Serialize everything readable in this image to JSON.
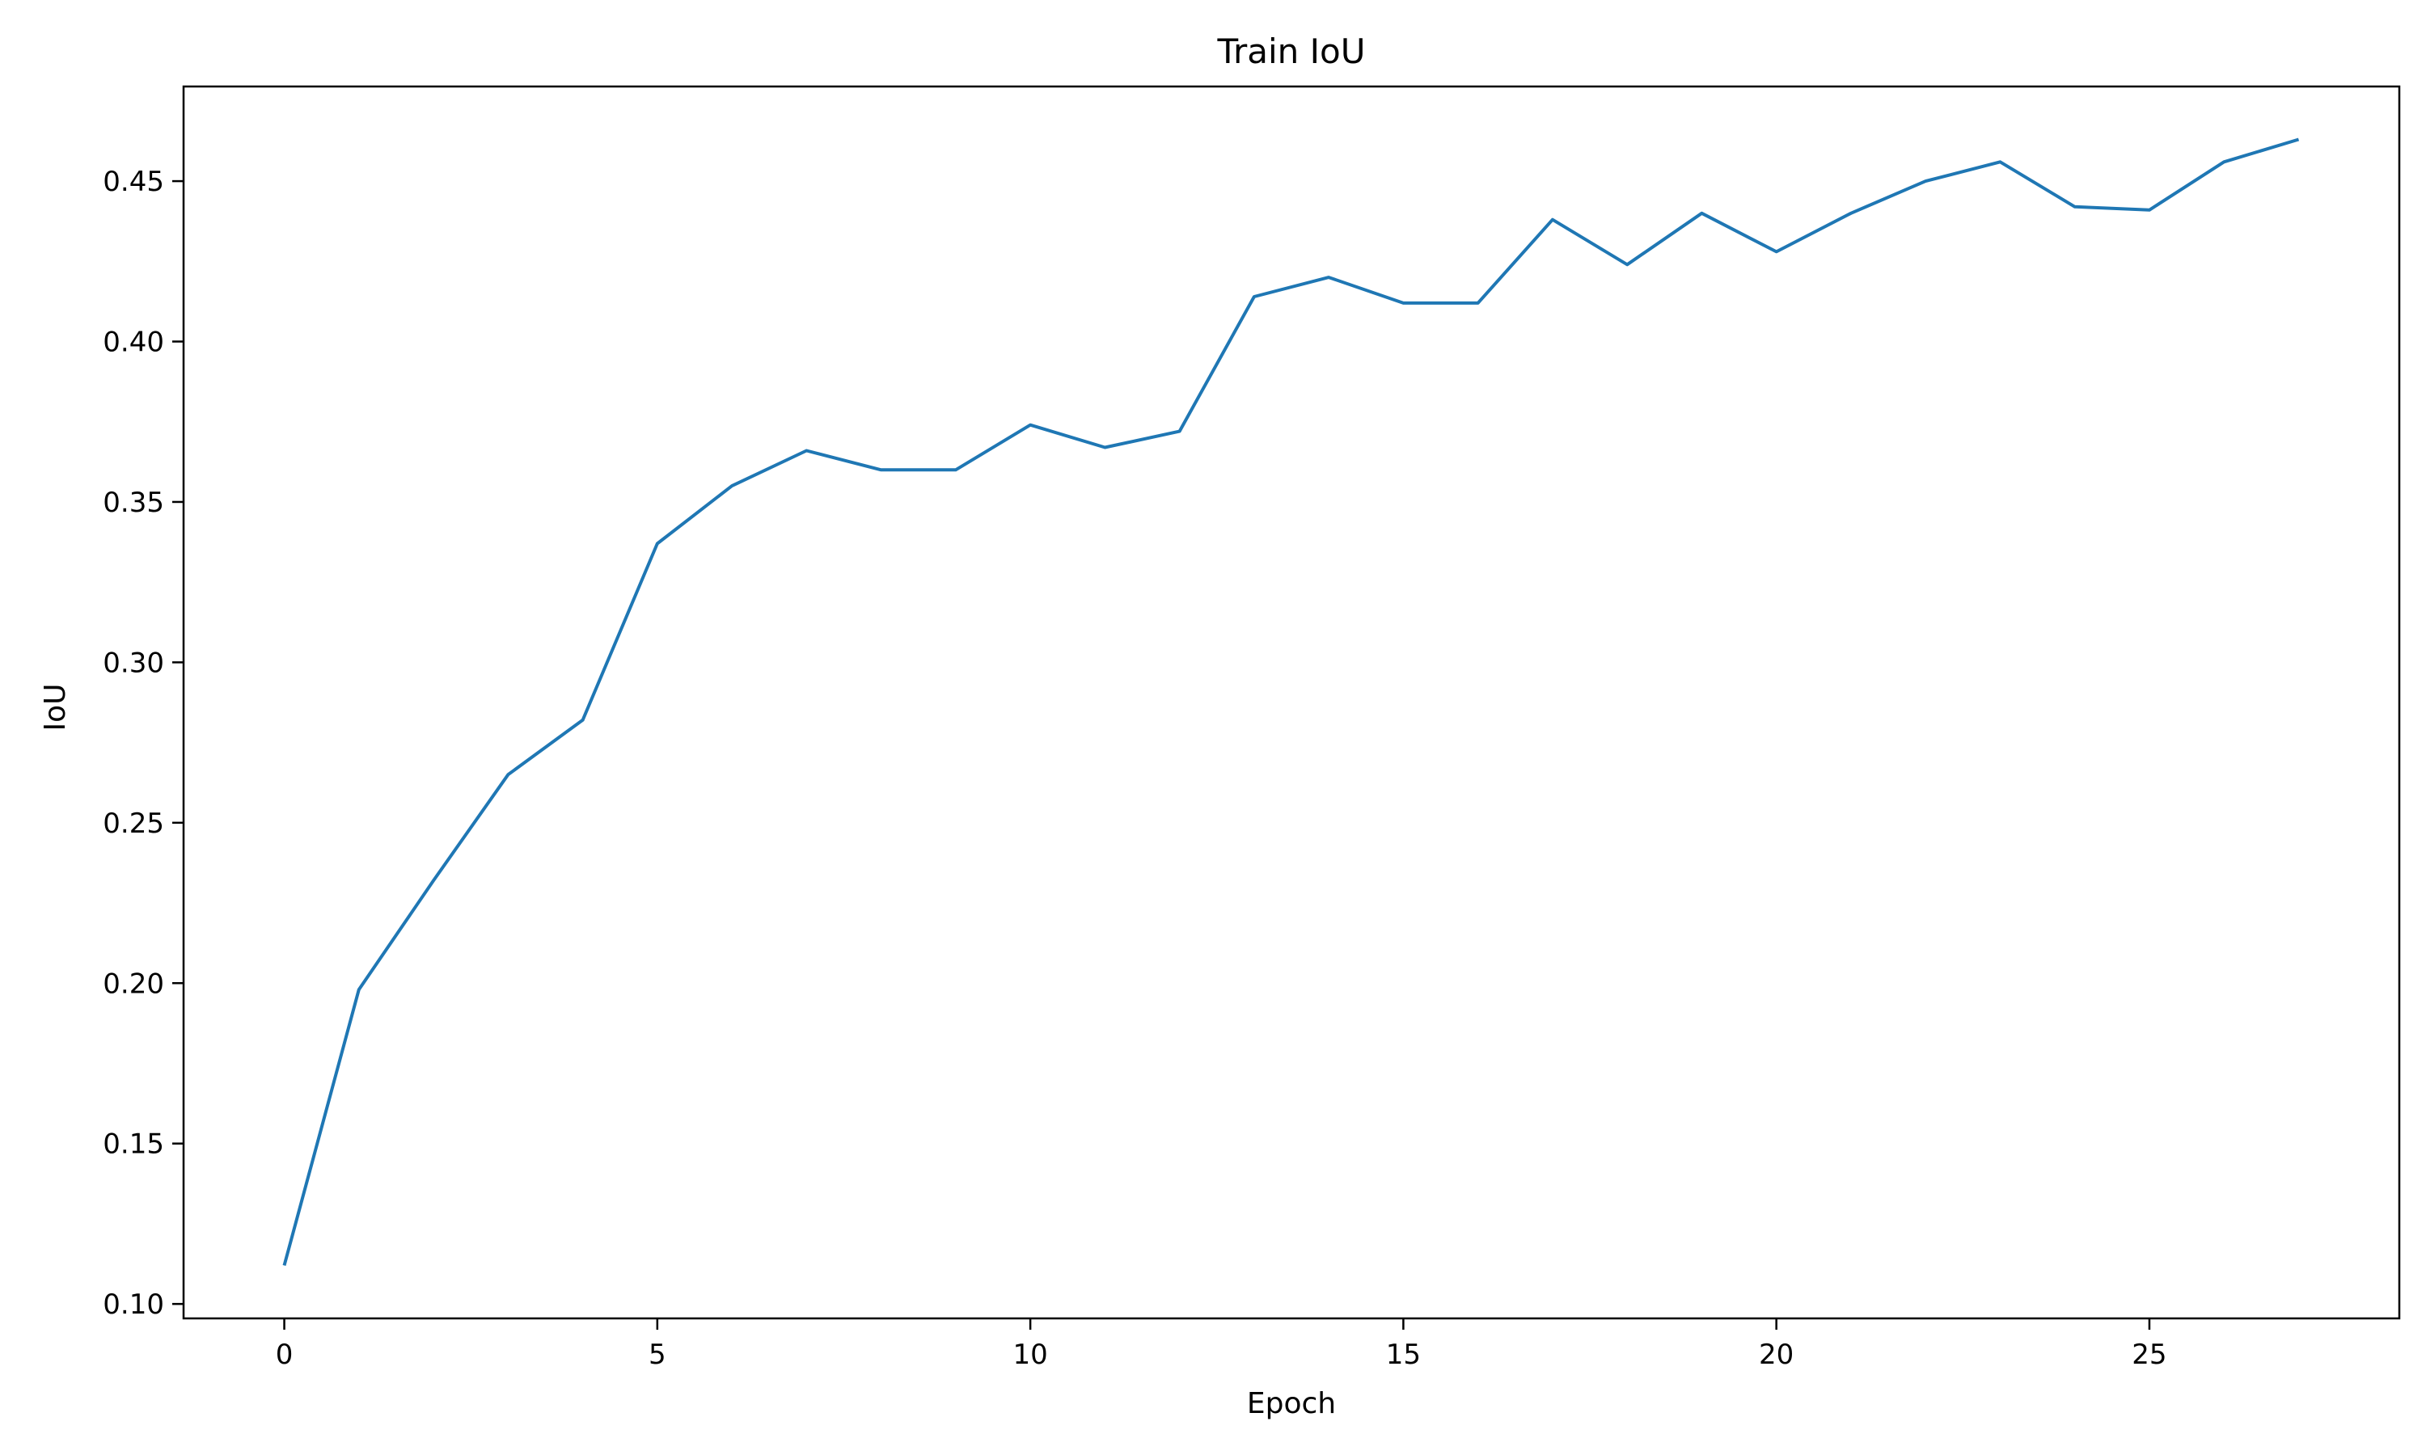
{
  "chart_data": {
    "type": "line",
    "title": "Train IoU",
    "xlabel": "Epoch",
    "ylabel": "IoU",
    "xlim": [
      -1.35,
      28.35
    ],
    "ylim": [
      0.0955,
      0.4795
    ],
    "x_ticks": [
      0,
      5,
      10,
      15,
      20,
      25
    ],
    "y_ticks": [
      0.1,
      0.15,
      0.2,
      0.25,
      0.3,
      0.35,
      0.4,
      0.45
    ],
    "grid": false,
    "line_color": "#1f77b4",
    "series": [
      {
        "x": [
          0,
          1,
          2,
          3,
          4,
          5,
          6,
          7,
          8,
          9,
          10,
          11,
          12,
          13,
          14,
          15,
          16,
          17,
          18,
          19,
          20,
          21,
          22,
          23,
          24,
          25,
          26,
          27
        ],
        "values": [
          0.112,
          0.198,
          0.232,
          0.265,
          0.282,
          0.337,
          0.355,
          0.366,
          0.36,
          0.36,
          0.374,
          0.367,
          0.372,
          0.414,
          0.42,
          0.412,
          0.412,
          0.438,
          0.424,
          0.44,
          0.428,
          0.44,
          0.45,
          0.456,
          0.442,
          0.441,
          0.456,
          0.463
        ]
      }
    ]
  }
}
